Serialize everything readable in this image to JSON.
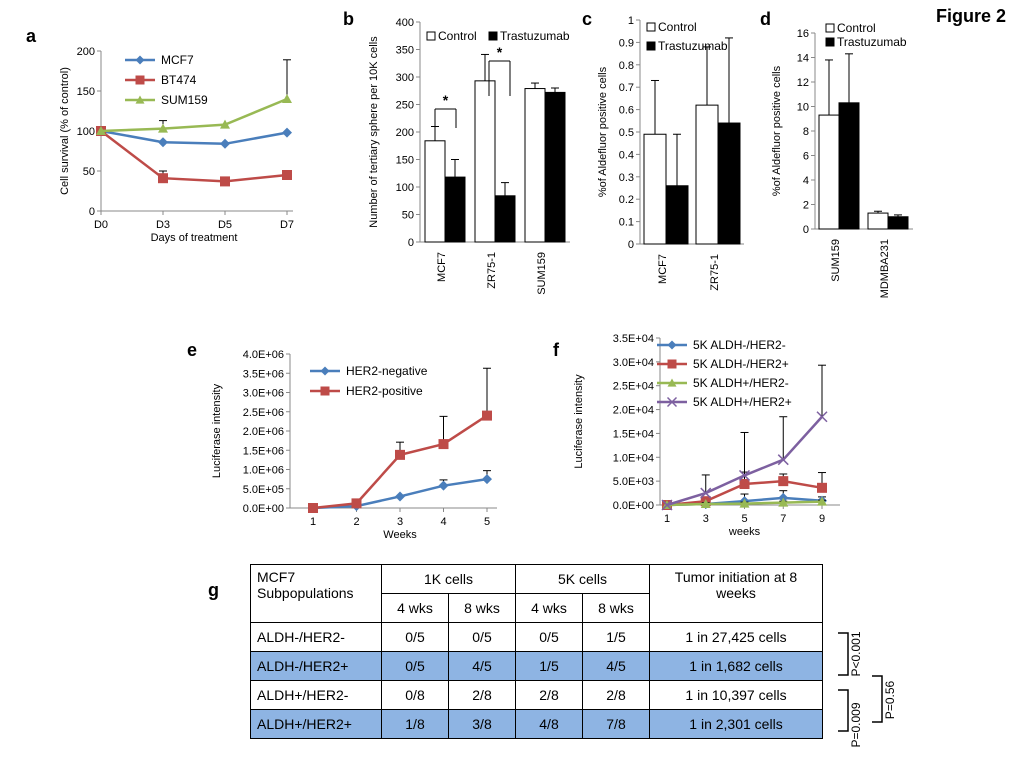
{
  "figure_title": "Figure 2",
  "colors": {
    "blue": "#4a7ebb",
    "red": "#be4b48",
    "green": "#98b954",
    "purple": "#7d60a0",
    "highlight": "#8eb4e3"
  },
  "panel_labels": {
    "a": "a",
    "b": "b",
    "c": "c",
    "d": "d",
    "e": "e",
    "f": "f",
    "g": "g"
  },
  "chart_data": [
    {
      "panel": "a",
      "type": "line",
      "x": [
        "D0",
        "D3",
        "D5",
        "D7"
      ],
      "xlabel": "Days of treatment",
      "ylabel": "Cell survival (% of control)",
      "ylim": [
        0,
        200
      ],
      "yticks": [
        0,
        50,
        100,
        150,
        200
      ],
      "series": [
        {
          "name": "MCF7",
          "values": [
            100,
            86,
            84,
            98
          ],
          "errors": [
            0,
            0,
            0,
            0
          ]
        },
        {
          "name": "BT474",
          "values": [
            100,
            41,
            37,
            45
          ],
          "errors": [
            0,
            9,
            0,
            0
          ]
        },
        {
          "name": "SUM159",
          "values": [
            100,
            103,
            108,
            140
          ],
          "errors": [
            0,
            10,
            0,
            49
          ]
        }
      ]
    },
    {
      "panel": "b",
      "type": "bar",
      "categories": [
        "MCF7",
        "ZR75-1",
        "SUM159"
      ],
      "ylabel": "Number of tertiary sphere per 10K cells",
      "ylim": [
        0,
        400
      ],
      "yticks": [
        0,
        50,
        100,
        150,
        200,
        250,
        300,
        350,
        400
      ],
      "series": [
        {
          "name": "Control",
          "values": [
            184,
            293,
            279
          ],
          "errors": [
            26,
            48,
            10
          ]
        },
        {
          "name": "Trastuzumab",
          "values": [
            118,
            84,
            272
          ],
          "errors": [
            32,
            24,
            8
          ]
        }
      ],
      "annotations": [
        "*",
        "*"
      ]
    },
    {
      "panel": "c",
      "type": "bar",
      "categories": [
        "MCF7",
        "ZR75-1"
      ],
      "ylabel": "%of Aldefluor positive cells",
      "ylim": [
        0,
        1
      ],
      "yticks": [
        "0",
        "0.1",
        "0.2",
        "0.3",
        "0.4",
        "0.5",
        "0.6",
        "0.7",
        "0.8",
        "0.9",
        "1"
      ],
      "series": [
        {
          "name": "Control",
          "values": [
            0.49,
            0.62
          ],
          "errors": [
            0.24,
            0.26
          ]
        },
        {
          "name": "Trastuzumab",
          "values": [
            0.26,
            0.54
          ],
          "errors": [
            0.23,
            0.38
          ]
        }
      ]
    },
    {
      "panel": "d",
      "type": "bar",
      "categories": [
        "SUM159",
        "MDMBA231"
      ],
      "ylabel": "%of Aldefluor positive cells",
      "ylim": [
        0,
        16
      ],
      "yticks": [
        0,
        2,
        4,
        6,
        8,
        10,
        12,
        14,
        16
      ],
      "series": [
        {
          "name": "Control",
          "values": [
            9.3,
            1.3
          ],
          "errors": [
            4.5,
            0.15
          ]
        },
        {
          "name": "Trastuzumab",
          "values": [
            10.3,
            1.0
          ],
          "errors": [
            4.0,
            0.15
          ]
        }
      ]
    },
    {
      "panel": "e",
      "type": "line",
      "x": [
        "1",
        "2",
        "3",
        "4",
        "5"
      ],
      "xlabel": "Weeks",
      "ylabel": "Luciferase intensity",
      "ylim": [
        0,
        4000000
      ],
      "yticks": [
        "0.0E+00",
        "5.0E+05",
        "1.0E+06",
        "1.5E+06",
        "2.0E+06",
        "2.5E+06",
        "3.0E+06",
        "3.5E+06",
        "4.0E+06"
      ],
      "series": [
        {
          "name": "HER2-negative",
          "values": [
            0,
            50000,
            300000,
            580000,
            750000
          ],
          "errors": [
            0,
            0,
            0,
            150000,
            220000
          ]
        },
        {
          "name": "HER2-positive",
          "values": [
            0,
            120000,
            1380000,
            1660000,
            2400000
          ],
          "errors": [
            0,
            0,
            330000,
            720000,
            1230000
          ]
        }
      ]
    },
    {
      "panel": "f",
      "type": "line",
      "x": [
        "1",
        "3",
        "5",
        "7",
        "9"
      ],
      "xlabel": "weeks",
      "ylabel": "Luciferase intensity",
      "ylim": [
        0,
        35000
      ],
      "yticks": [
        "0.0E+00",
        "5.0E+03",
        "1.0E+04",
        "1.5E+04",
        "2.0E+04",
        "2.5E+04",
        "3.0E+04",
        "3.5E+04"
      ],
      "series": [
        {
          "name": "5K ALDH-/HER2-",
          "values": [
            0,
            200,
            800,
            1500,
            900
          ],
          "errors": [
            0,
            500,
            1500,
            1500,
            800
          ]
        },
        {
          "name": "5K ALDH-/HER2+",
          "values": [
            0,
            800,
            4400,
            5000,
            3600
          ],
          "errors": [
            0,
            800,
            2500,
            1500,
            3200
          ]
        },
        {
          "name": "5K ALDH+/HER2-",
          "values": [
            0,
            200,
            300,
            500,
            700
          ],
          "errors": [
            0,
            300,
            300,
            300,
            300
          ]
        },
        {
          "name": "5K ALDH+/HER2+",
          "values": [
            0,
            2500,
            6200,
            9500,
            18500
          ],
          "errors": [
            0,
            3800,
            9000,
            9000,
            10800
          ]
        }
      ]
    }
  ],
  "table_g": {
    "header_col": "MCF7 Subpopulations",
    "group_1k": "1K cells",
    "group_5k": "5K cells",
    "wk4": "4 wks",
    "wk8": "8 wks",
    "tumor_header": "Tumor initiation at 8 weeks",
    "rows": [
      {
        "label": "ALDH-/HER2-",
        "c1": "0/5",
        "c2": "0/5",
        "c3": "0/5",
        "c4": "1/5",
        "tumor": "1 in 27,425 cells"
      },
      {
        "label": "ALDH-/HER2+",
        "c1": "0/5",
        "c2": "4/5",
        "c3": "1/5",
        "c4": "4/5",
        "tumor": "1 in 1,682 cells"
      },
      {
        "label": "ALDH+/HER2-",
        "c1": "0/8",
        "c2": "2/8",
        "c3": "2/8",
        "c4": "2/8",
        "tumor": "1 in 10,397 cells"
      },
      {
        "label": "ALDH+/HER2+",
        "c1": "1/8",
        "c2": "3/8",
        "c3": "4/8",
        "c4": "7/8",
        "tumor": "1 in 2,301 cells"
      }
    ],
    "pvalues": [
      "P<0.001",
      "P=0.009",
      "P=0.56"
    ]
  }
}
